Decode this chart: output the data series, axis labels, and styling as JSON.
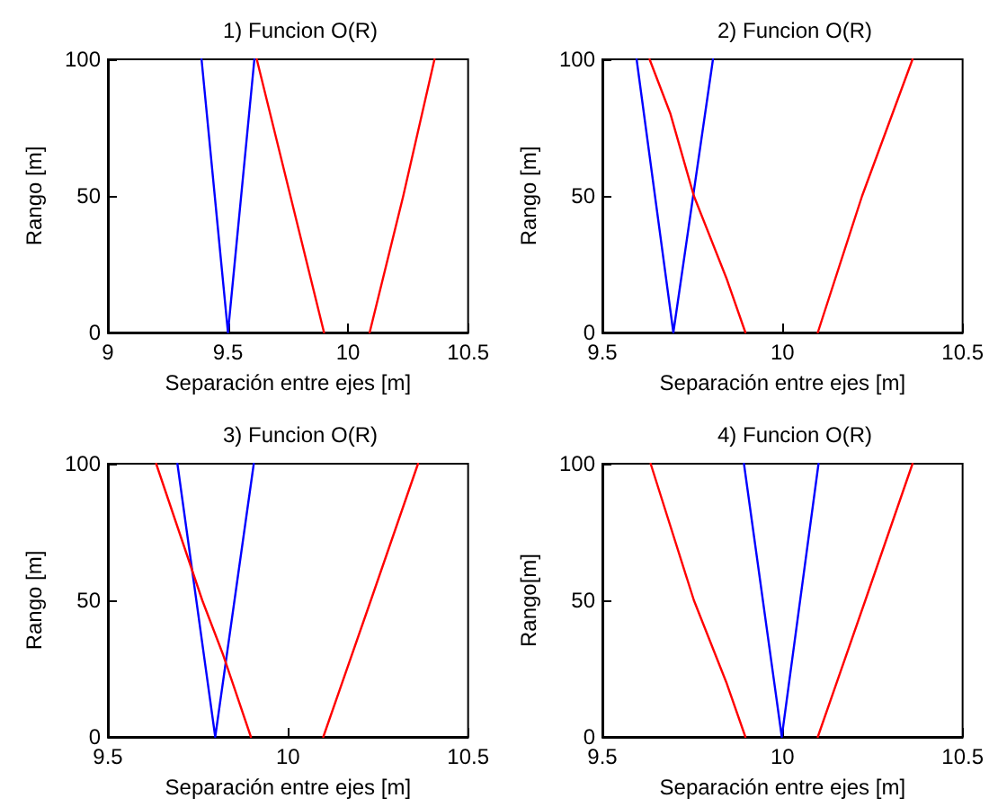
{
  "chart_data": [
    {
      "type": "line",
      "title": "1) Funcion O(R)",
      "xlabel": "Separación entre ejes [m]",
      "ylabel": "Rango [m]",
      "xlim": [
        9,
        10.5
      ],
      "xticks": [
        9,
        9.5,
        10,
        10.5
      ],
      "ylim": [
        0,
        100
      ],
      "yticks": [
        0,
        50,
        100
      ],
      "series": [
        {
          "color": "#0000ff",
          "x": [
            9.39,
            9.5,
            9.61
          ],
          "values": [
            100,
            0,
            100
          ]
        },
        {
          "color": "#ff0000",
          "x": [
            9.62,
            9.76,
            9.9,
            10,
            10.09,
            10.23,
            10.36
          ],
          "values": [
            100,
            50,
            0,
            null,
            0,
            50,
            100
          ]
        }
      ]
    },
    {
      "type": "line",
      "title": "2) Funcion O(R)",
      "xlabel": "Separación entre ejes [m]",
      "ylabel": "Rango [m]",
      "xlim": [
        9.5,
        10.5
      ],
      "xticks": [
        9.5,
        10,
        10.5
      ],
      "ylim": [
        0,
        100
      ],
      "yticks": [
        0,
        50,
        100
      ],
      "series": [
        {
          "color": "#0000ff",
          "x": [
            9.595,
            9.697,
            9.807
          ],
          "values": [
            100,
            0,
            100
          ]
        },
        {
          "color": "#ff0000",
          "x": [
            9.631,
            9.689,
            9.754,
            9.844,
            9.897,
            10,
            10.098,
            10.221,
            10.361
          ],
          "values": [
            100,
            80,
            50,
            20,
            0,
            null,
            0,
            50,
            100
          ]
        }
      ]
    },
    {
      "type": "line",
      "title": "3) Funcion O(R)",
      "xlabel": "Separación entre ejes [m]",
      "ylabel": "Rango [m]",
      "xlim": [
        9.5,
        10.5
      ],
      "xticks": [
        9.5,
        10,
        10.5
      ],
      "ylim": [
        0,
        100
      ],
      "yticks": [
        0,
        50,
        100
      ],
      "series": [
        {
          "color": "#0000ff",
          "x": [
            9.693,
            9.798,
            9.905
          ],
          "values": [
            100,
            0,
            100
          ]
        },
        {
          "color": "#ff0000",
          "x": [
            9.634,
            9.762,
            9.82,
            9.897,
            10,
            10.098,
            10.23,
            10.361
          ],
          "values": [
            100,
            50,
            30,
            0,
            null,
            0,
            50,
            100
          ]
        }
      ]
    },
    {
      "type": "line",
      "title": "4) Funcion O(R)",
      "xlabel": "Separación entre ejes [m]",
      "ylabel": "Rango[m]",
      "xlim": [
        9.5,
        10.5
      ],
      "xticks": [
        9.5,
        10,
        10.5
      ],
      "ylim": [
        0,
        100
      ],
      "yticks": [
        0,
        50,
        100
      ],
      "series": [
        {
          "color": "#0000ff",
          "x": [
            9.893,
            9.998,
            10.1
          ],
          "values": [
            100,
            0,
            100
          ]
        },
        {
          "color": "#ff0000",
          "x": [
            9.634,
            9.754,
            9.844,
            9.897,
            10,
            10.098,
            10.23,
            10.361
          ],
          "values": [
            100,
            50,
            20,
            0,
            null,
            0,
            50,
            100
          ]
        }
      ]
    }
  ]
}
